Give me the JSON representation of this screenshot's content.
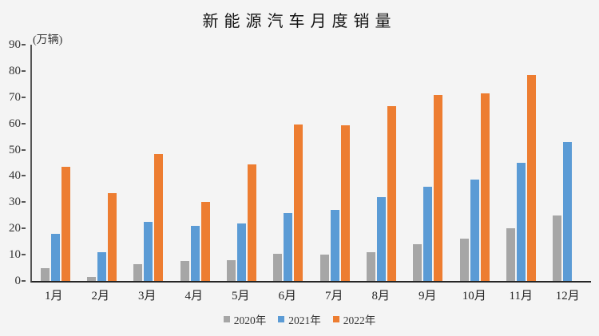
{
  "chart_data": {
    "type": "bar",
    "title": "新能源汽车月度销量",
    "ylabel": "(万辆)",
    "xlabel": "",
    "categories": [
      "1月",
      "2月",
      "3月",
      "4月",
      "5月",
      "6月",
      "7月",
      "8月",
      "9月",
      "10月",
      "11月",
      "12月"
    ],
    "series": [
      {
        "name": "2020年",
        "color": "#a6a6a6",
        "values": [
          5,
          1.5,
          6.5,
          7.5,
          8,
          10.5,
          10,
          11,
          14,
          16,
          20,
          25
        ]
      },
      {
        "name": "2021年",
        "color": "#5b9bd5",
        "values": [
          18,
          11,
          22.5,
          21,
          22,
          26,
          27,
          32,
          36,
          38.5,
          45,
          53
        ]
      },
      {
        "name": "2022年",
        "color": "#ed7d31",
        "values": [
          43.5,
          33.5,
          48.5,
          30,
          44.5,
          59.6,
          59.3,
          66.5,
          71,
          71.5,
          78.5,
          null
        ]
      }
    ],
    "ylim": [
      0,
      90
    ],
    "yticks": [
      0,
      10,
      20,
      30,
      40,
      50,
      60,
      70,
      80,
      90
    ],
    "grid": false,
    "legend_position": "bottom",
    "background_color": "#f4f4f4",
    "axis_color": "#555555"
  }
}
